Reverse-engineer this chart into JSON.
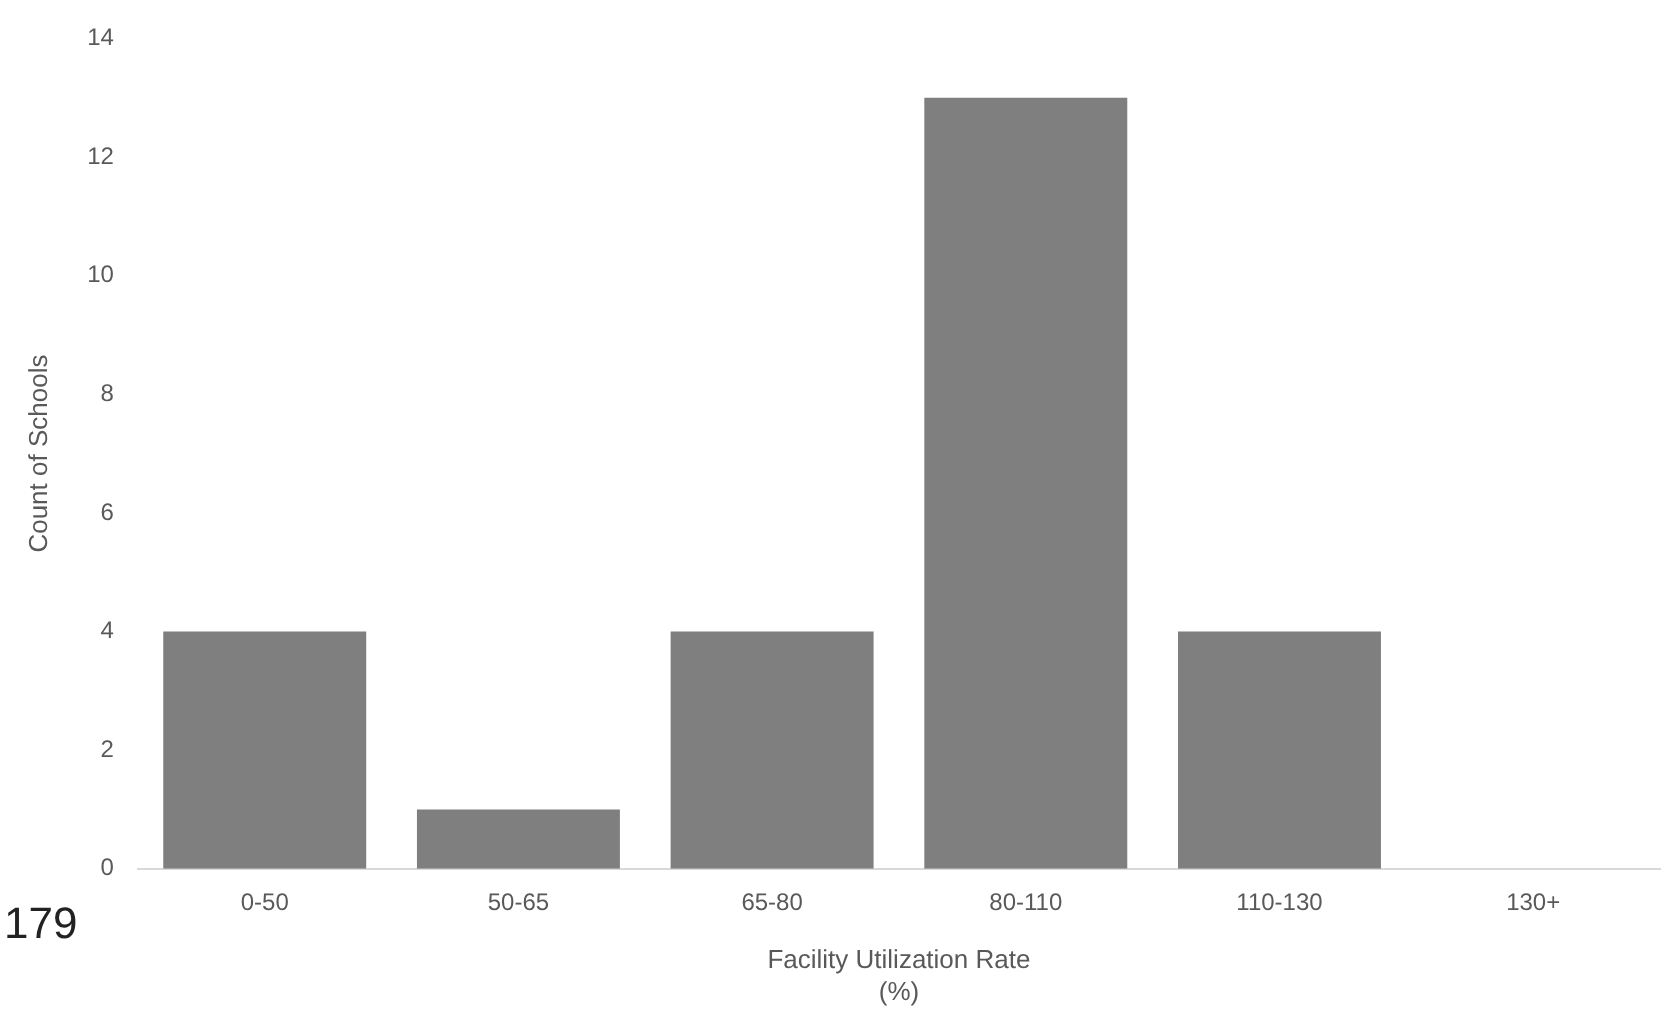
{
  "chart_data": {
    "type": "bar",
    "xlabel": "Facility Utilization Rate (%)",
    "ylabel": "Count of Schools",
    "categories": [
      "0-50",
      "50-65",
      "65-80",
      "80-110",
      "110-130",
      "130+"
    ],
    "values": [
      4,
      1,
      4,
      13,
      4,
      0
    ],
    "color": "#7f7f7f",
    "ylim": [
      0,
      14
    ],
    "yticks": [
      0,
      2,
      4,
      6,
      8,
      10,
      12,
      14
    ],
    "grid": false,
    "legend": false,
    "annotations": [
      "179"
    ]
  }
}
